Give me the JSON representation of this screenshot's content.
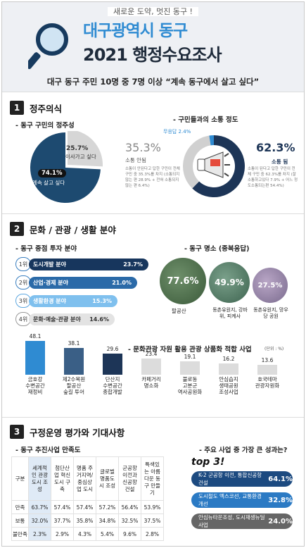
{
  "header": {
    "slogan": "새로운 도약, 멋진 동구 !",
    "title1": "대구광역시 동구",
    "title2": "2021 행정수요조사",
    "subtitle": "대구 동구 주민 10명 중 7명 이상 “계속 동구에서 살고 싶다”"
  },
  "sec1": {
    "num": "1",
    "title": "정주의식",
    "sub_left": "- 동구 구민의 정주성",
    "pie": {
      "left_pct": "25.7%",
      "left_label": "이사가고 싶다",
      "main_pct": "74.1%",
      "main_label": "계속 살고 싶다"
    },
    "sub_right": "- 구민들과의 소통 정도",
    "donut": {
      "none_label": "무응답 2.4%",
      "left_pct": "35.3%",
      "left_label": "소통 안됨",
      "left_desc": "소통이 안된다고 답한 구민이 전체 구민 중 35.3%를 차지 (소통되지 않는 편 28.9% + 전혀 소통되지않는 편 6.4%)",
      "right_pct": "62.3%",
      "right_label": "소통 됨",
      "right_desc": "소통이 된다고 답한 구민이 전체 구민 중 62.3%를 차지 (잘 소통하고있다 7.9% + 어느 정도소통되는편 54.4%)"
    },
    "chart_data": [
      {
        "type": "pie",
        "values": [
          74.1,
          25.7
        ],
        "labels": [
          "계속 살고 싶다",
          "이사가고 싶다"
        ]
      },
      {
        "type": "pie",
        "values": [
          62.3,
          35.3,
          2.4
        ],
        "labels": [
          "소통 됨",
          "소통 안됨",
          "무응답"
        ]
      }
    ]
  },
  "sec2": {
    "num": "2",
    "title": "문화 / 관광 / 생활 분야",
    "sub_left": "- 동구 중점 투자 분야",
    "ranks": [
      {
        "rank": "1위",
        "label": "도시개발 분야",
        "value": "23.7%"
      },
      {
        "rank": "2위",
        "label": "산업·경제 분야",
        "value": "21.0%"
      },
      {
        "rank": "3위",
        "label": "생활환경 분야",
        "value": "15.3%"
      },
      {
        "rank": "4위",
        "label": "문화·예술·관광 분야",
        "value": "14.6%"
      }
    ],
    "sub_right": "- 동구 명소 (중복응답)",
    "places": [
      {
        "pct": "77.6%",
        "name": "팔공산"
      },
      {
        "pct": "49.9%",
        "name": "동촌유원지, 강바위, 피케사"
      },
      {
        "pct": "27.5%",
        "name": "동촌유원지, 망우당 공원"
      }
    ],
    "tour_title": "- 문화관광 자원 활용 관광 상품화 적합 사업",
    "tour_unit": "(단위 : %)",
    "chart_data": {
      "type": "bar",
      "categories": [
        "금호강 수변공간 재정비",
        "제2수목원 팔공산 숲길 투어",
        "단산지 수변공간 종합개발",
        "카페거리 명소화",
        "불로동 고분군 역사공원화",
        "안심습지 생태공원 조성사업",
        "호국테마 관광자원화"
      ],
      "values": [
        48.1,
        38.1,
        29.6,
        23.4,
        19.1,
        16.2,
        13.6
      ]
    },
    "tour_values": [
      "48.1",
      "38.1",
      "29.6",
      "23.4",
      "19.1",
      "16.2",
      "13.6"
    ],
    "tour_labels": [
      "금호강\n수변공간\n재정비",
      "제2수목원\n팔공산\n숲길 투어",
      "단산지\n수변공간\n종합개발",
      "카페거리\n명소화",
      "불로동\n고분군\n역사공원화",
      "안심습지\n생태공원\n조성사업",
      "호국테마\n관광자원화"
    ]
  },
  "sec3": {
    "num": "3",
    "title": "구정운영 평가와 기대사항",
    "sub_left": "- 동구 추진사업 만족도",
    "table": {
      "head": [
        "구분",
        "세계적인 관광도시 조성",
        "첨단산업 혁신도시 구축",
        "명품 주거지역/ 중심상업 도시",
        "글로벌 명품도시 조성",
        "군공항 이전과 신공항 건설",
        "특색있는 아름다운 동구 만들기"
      ],
      "rows": [
        [
          "만족",
          "63.7%",
          "57.4%",
          "57.4%",
          "57.2%",
          "56.4%",
          "53.9%"
        ],
        [
          "보통",
          "32.0%",
          "37.7%",
          "35.8%",
          "34.8%",
          "32.5%",
          "37.5%"
        ],
        [
          "불만족",
          "2.3%",
          "2.9%",
          "4.3%",
          "5.4%",
          "9.6%",
          "2.8%"
        ]
      ]
    },
    "sub_right": "- 주요 사업 중 가장 큰 성과는?",
    "top": "top 3!",
    "achievements": [
      {
        "label": "K-2 군공항 이전, 통합신공항 건설",
        "value": "64.1%"
      },
      {
        "label": "도시철도 엑스코선, 교통환경개선",
        "value": "32.8%"
      },
      {
        "label": "안심뉴타운조성, 도시재생뉴딜사업",
        "value": "24.0%"
      }
    ]
  },
  "colors": {
    "navy": "#1d3557",
    "blue": "#2f8bd2",
    "teal": "#1c6e8a",
    "light": "#d9dde3"
  }
}
